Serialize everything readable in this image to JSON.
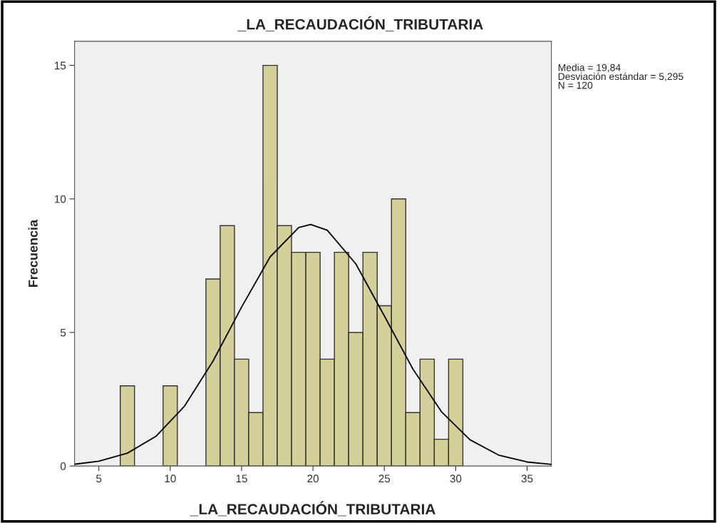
{
  "chart_data": {
    "type": "histogram",
    "title": "_LA_RECAUDACIÓN_TRIBUTARIA",
    "xlabel": "_LA_RECAUDACIÓN_TRIBUTARIA",
    "ylabel": "Frecuencia",
    "series": [
      {
        "type": "histogram",
        "color": "#d4d09a",
        "bins": [
          6.5,
          7.5,
          8.5,
          9.5,
          10.5,
          11.5,
          12.5,
          13.5,
          14.5,
          15.5,
          16.5,
          17.5,
          18.5,
          19.5,
          20.5,
          21.5,
          22.5,
          23.5,
          24.5,
          25.5,
          26.5,
          27.5,
          28.5,
          29.5,
          30.5
        ],
        "values": [
          3,
          0,
          0,
          3,
          0,
          0,
          7,
          9,
          4,
          2,
          15,
          9,
          8,
          8,
          4,
          8,
          5,
          8,
          6,
          10,
          2,
          4,
          1,
          4
        ]
      },
      {
        "type": "line",
        "color": "#000000",
        "x": [
          3.35,
          5,
          7,
          9,
          11,
          13,
          15,
          17,
          19,
          19.84,
          21,
          23,
          25,
          27,
          29,
          31,
          33,
          35,
          36.7
        ],
        "values": [
          0.07,
          0.18,
          0.48,
          1.11,
          2.24,
          3.93,
          5.95,
          7.83,
          8.93,
          9.04,
          8.83,
          7.57,
          5.62,
          3.63,
          2.03,
          0.98,
          0.41,
          0.15,
          0.06
        ]
      }
    ],
    "xlim": [
      3.3,
      36.7
    ],
    "ylim": [
      0,
      15.9
    ],
    "xticks": [
      5,
      10,
      15,
      20,
      25,
      30,
      35
    ],
    "yticks": [
      0,
      5,
      10,
      15
    ],
    "grid": false,
    "legend": false,
    "annotations": [
      "Media = 19,84\nDesviación estándar = 5,295\nN = 120"
    ]
  }
}
